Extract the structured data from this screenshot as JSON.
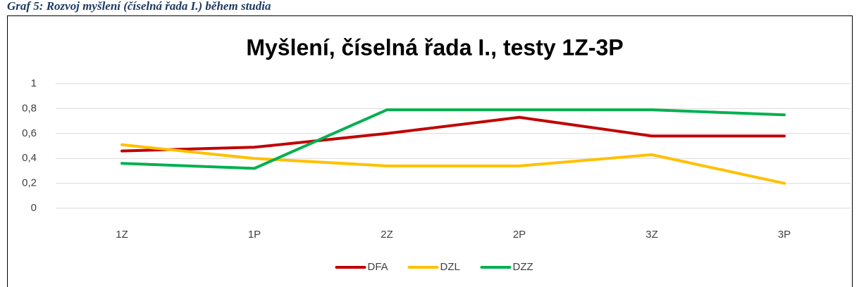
{
  "caption": "Graf 5: Rozvoj myšlení (číselná řada I.) během studia",
  "chart_data": {
    "type": "line",
    "title": "Myšlení, číselná řada I., testy 1Z-3P",
    "categories": [
      "1Z",
      "1P",
      "2Z",
      "2P",
      "3Z",
      "3P"
    ],
    "series": [
      {
        "name": "DFA",
        "color": "#c00000",
        "values": [
          0.46,
          0.49,
          0.6,
          0.73,
          0.58,
          0.58
        ]
      },
      {
        "name": "DZL",
        "color": "#ffc000",
        "values": [
          0.51,
          0.4,
          0.34,
          0.34,
          0.43,
          0.2
        ]
      },
      {
        "name": "DZZ",
        "color": "#00b050",
        "values": [
          0.36,
          0.32,
          0.79,
          0.79,
          0.79,
          0.75
        ]
      }
    ],
    "ylim": [
      0,
      1
    ],
    "yticks": [
      0,
      {
        "value": 0.2,
        "label": "0,2"
      },
      {
        "value": 0.4,
        "label": "0,4"
      },
      {
        "value": 0.6,
        "label": "0,6"
      },
      {
        "value": 0.8,
        "label": "0,8"
      },
      1
    ],
    "grid": true,
    "legend": "bottom"
  }
}
